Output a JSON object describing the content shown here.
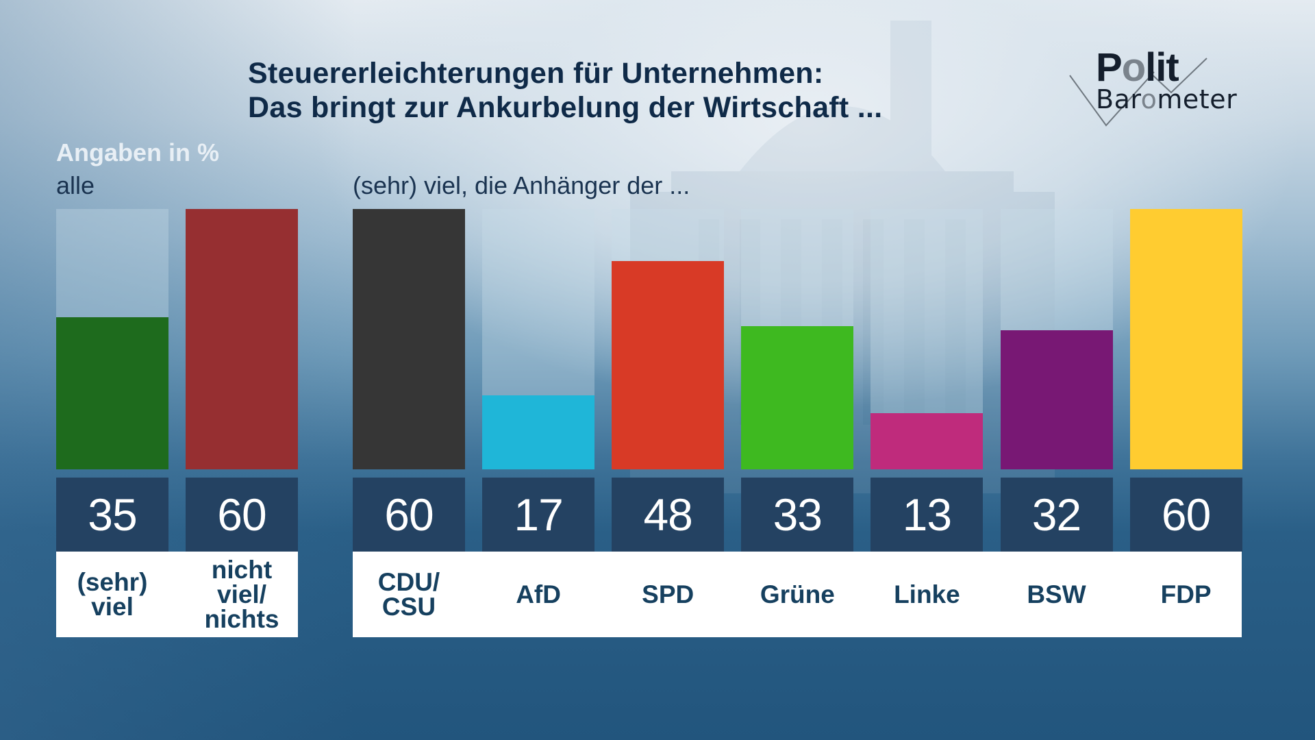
{
  "header": {
    "title_line1": "Steuererleichterungen für Unternehmen:",
    "title_line2": "Das bringt zur Ankurbelung der Wirtschaft ...",
    "logo": {
      "word1_pre": "P",
      "word1_o": "o",
      "word1_post": "lit",
      "word2_pre": "Bar",
      "word2_o": "o",
      "word2_post": "meter",
      "mark": "check-mark-icon"
    }
  },
  "chart_data": {
    "type": "bar",
    "title": "Steuererleichterungen für Unternehmen: Das bringt zur Ankurbelung der Wirtschaft ...",
    "unit_label": "Angaben in %",
    "ylim": [
      0,
      60
    ],
    "grid": false,
    "groups": [
      {
        "label": "alle",
        "categories": [
          "(sehr)\nviel",
          "nicht\nviel/\nnichts"
        ],
        "values": [
          35,
          60
        ],
        "colors": [
          "#1e6b1d",
          "#962f31"
        ]
      },
      {
        "label": "(sehr) viel, die Anhänger der ...",
        "categories": [
          "CDU/\nCSU",
          "AfD",
          "SPD",
          "Grüne",
          "Linke",
          "BSW",
          "FDP"
        ],
        "values": [
          60,
          17,
          48,
          33,
          13,
          32,
          60
        ],
        "colors": [
          "#363636",
          "#1fb6d8",
          "#d83a26",
          "#3eb920",
          "#bf2b7c",
          "#781874",
          "#ffcc30"
        ]
      }
    ]
  }
}
